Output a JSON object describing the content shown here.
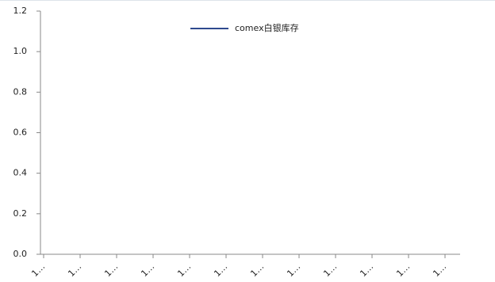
{
  "chart_data": {
    "type": "line",
    "categories": [
      "1…",
      "1…",
      "1…",
      "1…",
      "1…",
      "1…",
      "1…",
      "1…",
      "1…",
      "1…",
      "1…",
      "1…"
    ],
    "series": [
      {
        "name": "comex白银库存",
        "color": "#2e4a8e",
        "values": [
          null,
          null,
          null,
          null,
          null,
          null,
          null,
          null,
          null,
          null,
          null,
          null
        ]
      }
    ],
    "ylim": [
      0,
      1.2
    ],
    "yticks": [
      {
        "value": 0,
        "label": "0.0"
      },
      0.2,
      0.4,
      0.6,
      0.8,
      {
        "value": 1,
        "label": "1.0"
      },
      1.2
    ],
    "legend": "top"
  }
}
